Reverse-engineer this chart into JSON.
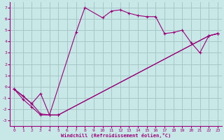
{
  "xlabel": "Windchill (Refroidissement éolien,°C)",
  "background_color": "#c8e8e8",
  "line_color": "#990077",
  "grid_color": "#a8c8c8",
  "xlim": [
    -0.5,
    23.5
  ],
  "ylim": [
    -3.5,
    7.5
  ],
  "xtick_labels": [
    "0",
    "1",
    "2",
    "3",
    "4",
    "5",
    "6",
    "7",
    "8",
    "9",
    "10",
    "11",
    "12",
    "13",
    "14",
    "15",
    "16",
    "17",
    "18",
    "19",
    "20",
    "21",
    "22",
    "23"
  ],
  "xtick_vals": [
    0,
    1,
    2,
    3,
    4,
    5,
    6,
    7,
    8,
    9,
    10,
    11,
    12,
    13,
    14,
    15,
    16,
    17,
    18,
    19,
    20,
    21,
    22,
    23
  ],
  "ytick_labels": [
    "-3",
    "-2",
    "-1",
    "0",
    "1",
    "2",
    "3",
    "4",
    "5",
    "6",
    "7"
  ],
  "ytick_vals": [
    -3,
    -2,
    -1,
    0,
    1,
    2,
    3,
    4,
    5,
    6,
    7
  ],
  "line1_x": [
    0,
    1,
    2,
    3,
    4,
    7,
    8,
    10,
    11,
    12,
    13,
    14,
    15,
    16,
    17,
    18,
    19,
    20,
    21,
    22,
    23
  ],
  "line1_y": [
    -0.2,
    -1.1,
    -1.8,
    -2.5,
    -2.5,
    4.8,
    7.0,
    6.1,
    6.7,
    6.8,
    6.5,
    6.3,
    6.2,
    6.2,
    4.7,
    4.8,
    5.0,
    3.9,
    3.0,
    4.5,
    4.7
  ],
  "line2_x": [
    0,
    2,
    3,
    4,
    5,
    22,
    23
  ],
  "line2_y": [
    -0.2,
    -1.5,
    -0.6,
    -2.5,
    -2.5,
    4.5,
    4.7
  ],
  "line3_x": [
    0,
    1,
    2,
    3,
    4,
    5,
    22,
    23
  ],
  "line3_y": [
    -0.2,
    -0.8,
    -1.5,
    -2.4,
    -2.5,
    -2.5,
    4.5,
    4.7
  ]
}
